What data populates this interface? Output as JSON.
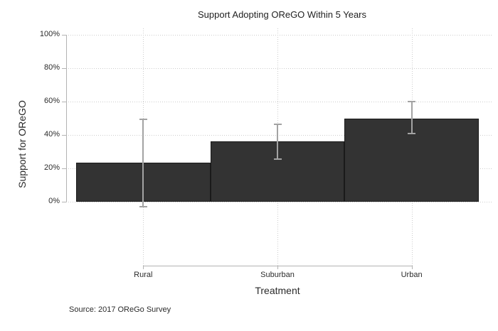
{
  "chart_data": {
    "type": "bar",
    "title": "Support Adopting OReGO Within 5 Years",
    "xlabel": "Treatment",
    "ylabel": "Support for OReGO",
    "note": "Source: 2017 OReGo Survey",
    "categories": [
      "Rural",
      "Suburban",
      "Urban"
    ],
    "values": [
      23.5,
      36,
      50
    ],
    "ci_low": [
      -3,
      25.5,
      41
    ],
    "ci_high": [
      49.5,
      46.5,
      60
    ],
    "y_tick_values": [
      0,
      20,
      40,
      60,
      80,
      100
    ],
    "y_tick_labels": [
      "0%",
      "20%",
      "40%",
      "60%",
      "80%",
      "100%"
    ],
    "ylim": [
      0,
      100
    ],
    "legend_position": "none",
    "grid": {
      "horizontal": true,
      "vertical": true,
      "style": "dotted"
    },
    "colors": {
      "bar_fill": "#333333",
      "bar_outline": "#1a1a1a",
      "error_bar": "#a3a3a3",
      "axis_line": "#b3b3b3",
      "gridline": "#cccccc",
      "text": "#2b2b2b",
      "background": "#ffffff"
    }
  }
}
